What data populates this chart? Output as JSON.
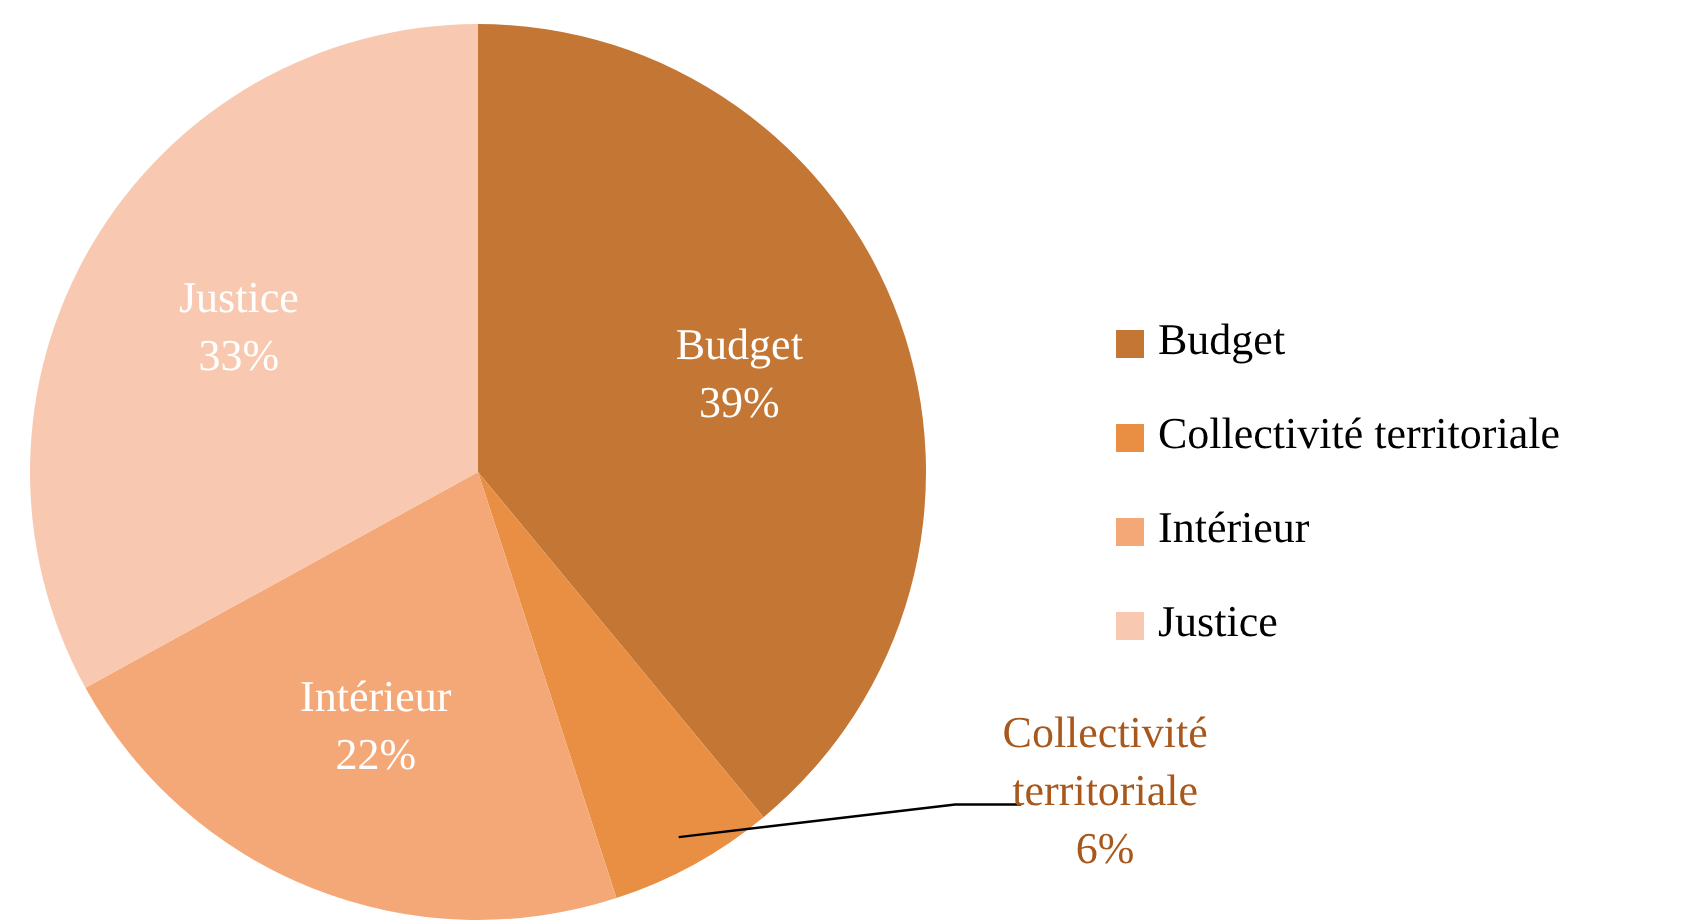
{
  "chart_data": {
    "type": "pie",
    "categories": [
      "Budget",
      "Collectivité territoriale",
      "Intérieur",
      "Justice"
    ],
    "values": [
      39,
      6,
      22,
      33
    ],
    "value_labels": [
      "39%",
      "6%",
      "22%",
      "33%"
    ],
    "colors": [
      "#c47634",
      "#e88f44",
      "#f5a877",
      "#f8c9b0"
    ],
    "legend": "right"
  }
}
